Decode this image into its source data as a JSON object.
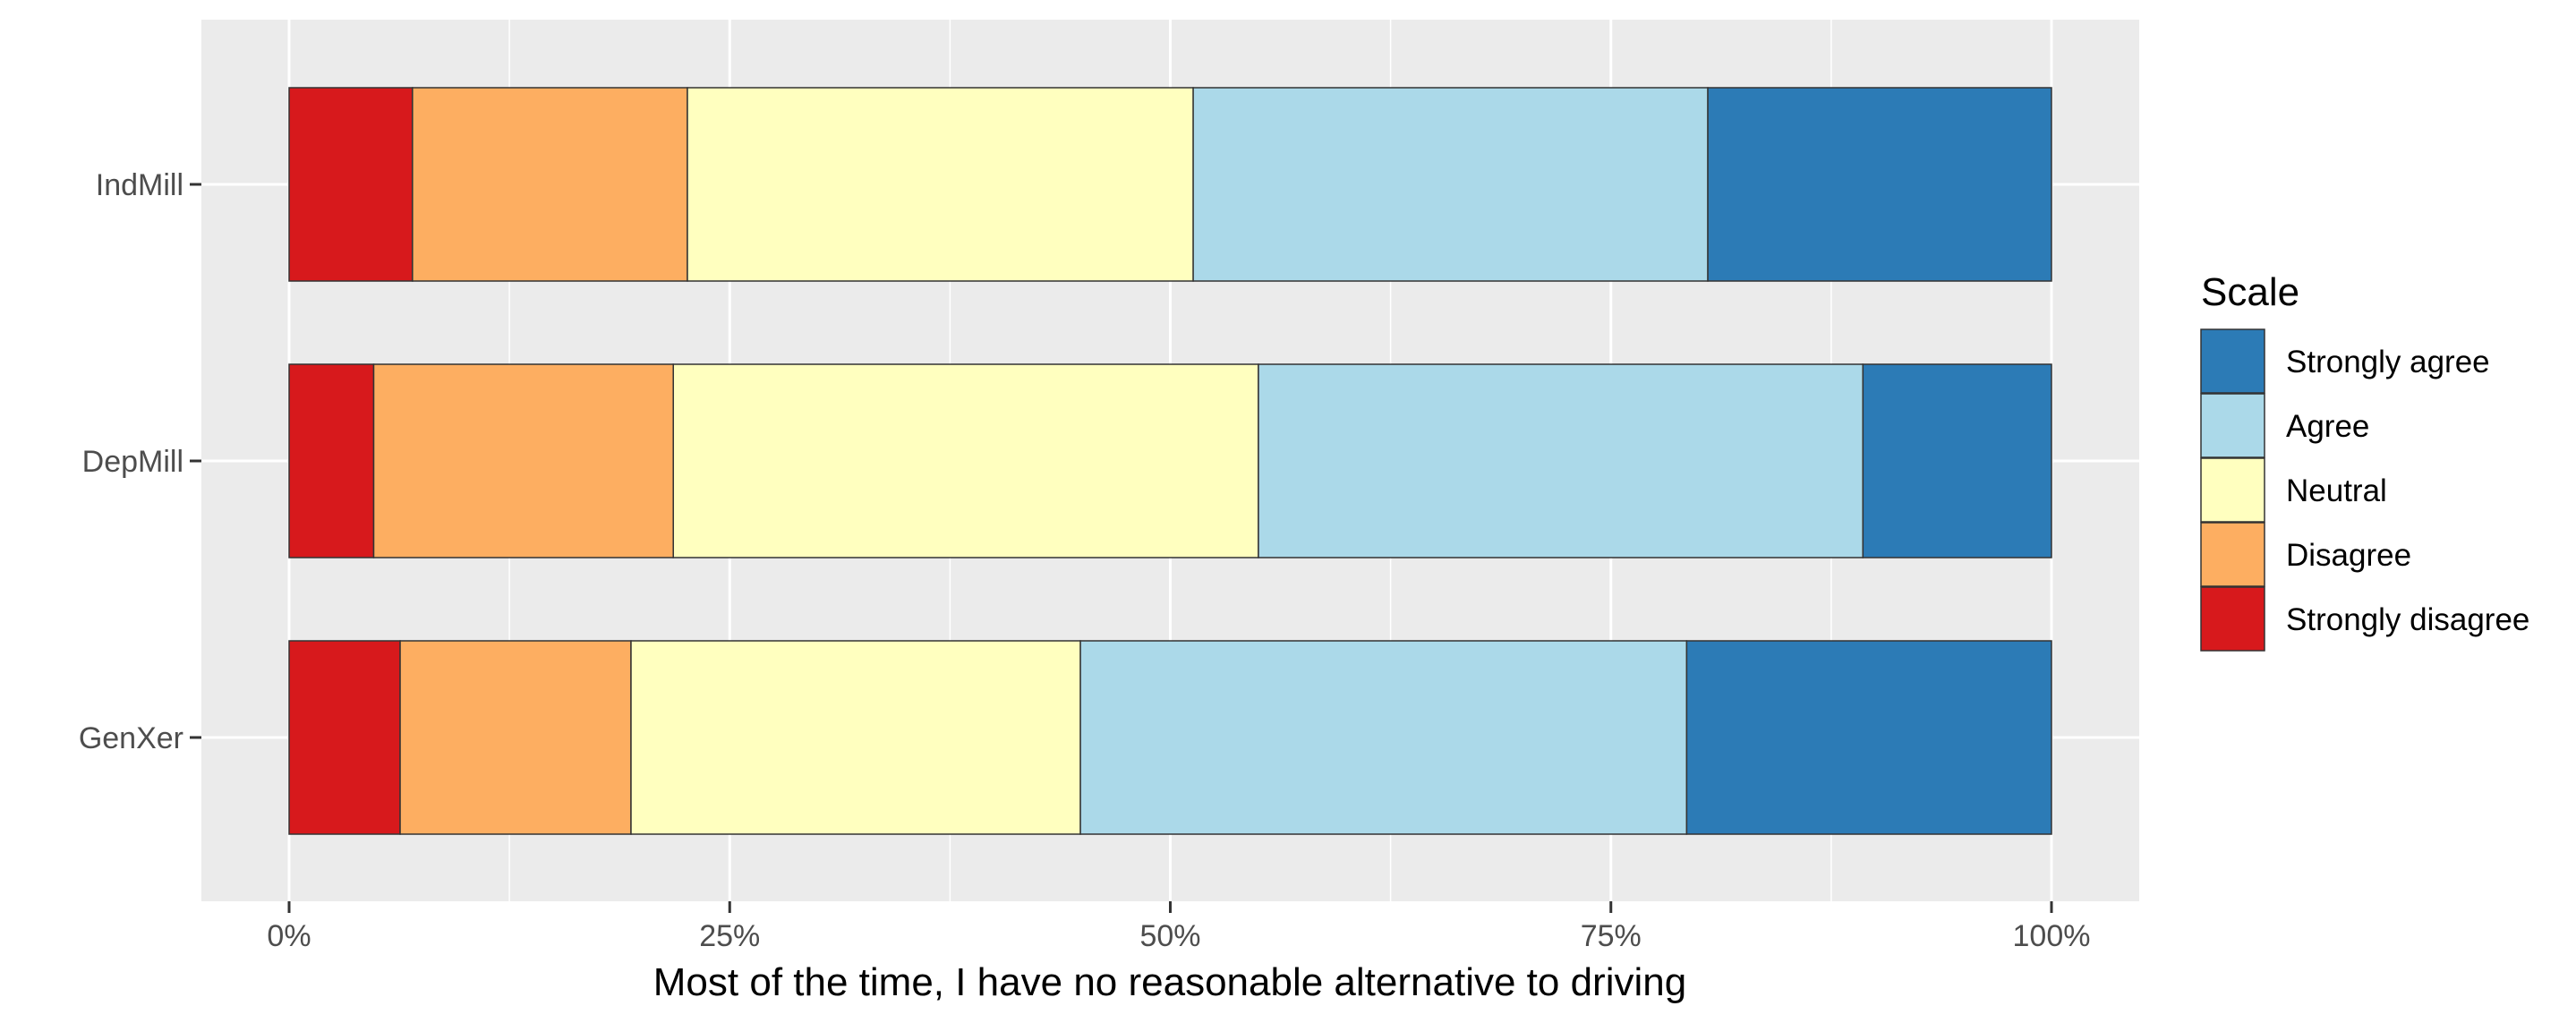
{
  "chart_data": {
    "type": "bar",
    "orientation": "horizontal",
    "stacked": true,
    "normalized": true,
    "categories": [
      "IndMill",
      "DepMill",
      "GenXer"
    ],
    "series": [
      {
        "name": "Strongly disagree",
        "color": "#d7191c",
        "values": [
          7.0,
          4.8,
          6.3
        ]
      },
      {
        "name": "Disagree",
        "color": "#fdae61",
        "values": [
          15.6,
          17.0,
          13.1
        ]
      },
      {
        "name": "Neutral",
        "color": "#ffffbf",
        "values": [
          28.7,
          33.2,
          25.5
        ]
      },
      {
        "name": "Agree",
        "color": "#abd9e9",
        "values": [
          29.2,
          34.3,
          34.4
        ]
      },
      {
        "name": "Strongly agree",
        "color": "#2c7bb6",
        "values": [
          19.5,
          10.7,
          20.7
        ]
      }
    ],
    "x_ticks": [
      "0%",
      "25%",
      "50%",
      "75%",
      "100%"
    ],
    "xlim": [
      0,
      100
    ],
    "xlabel": "Most of the time, I have no reasonable alternative to driving",
    "ylabel": "",
    "legend": {
      "title": "Scale",
      "position": "right",
      "entries": [
        "Strongly agree",
        "Agree",
        "Neutral",
        "Disagree",
        "Strongly disagree"
      ]
    },
    "grid": true,
    "panel_background": "#ebebeb"
  }
}
